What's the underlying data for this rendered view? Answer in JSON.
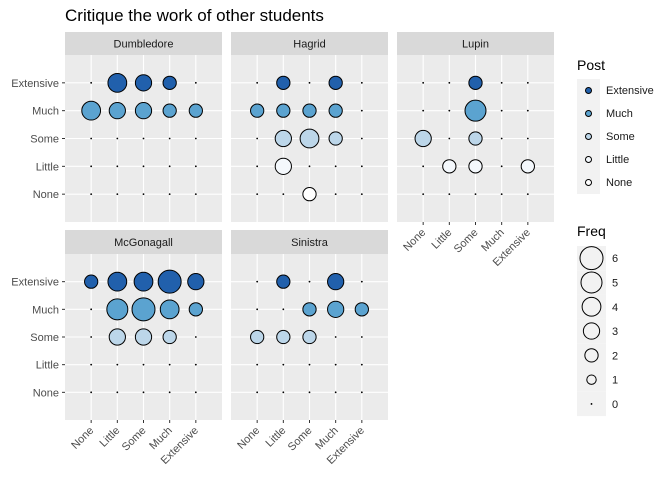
{
  "chart_data": {
    "type": "scatter",
    "title": "Critique the work of other students",
    "x_categories": [
      "None",
      "Little",
      "Some",
      "Much",
      "Extensive"
    ],
    "y_categories": [
      "None",
      "Little",
      "Some",
      "Much",
      "Extensive"
    ],
    "size_scale": {
      "legend_title": "Freq",
      "breaks": [
        6,
        5,
        4,
        3,
        2,
        1,
        0
      ],
      "max": 6
    },
    "fill_scale": {
      "legend_title": "Post",
      "levels": [
        "Extensive",
        "Much",
        "Some",
        "Little",
        "None"
      ],
      "colors": {
        "Extensive": "#2160ac",
        "Much": "#5ba3d0",
        "Some": "#bcd6e9",
        "Little": "#f4f8fc",
        "None": "#ffffff"
      }
    },
    "panels": [
      {
        "name": "Dumbledore",
        "points": [
          {
            "x": "Little",
            "y": "Extensive",
            "freq": 4
          },
          {
            "x": "Some",
            "y": "Extensive",
            "freq": 3
          },
          {
            "x": "Much",
            "y": "Extensive",
            "freq": 2
          },
          {
            "x": "None",
            "y": "Much",
            "freq": 4
          },
          {
            "x": "Little",
            "y": "Much",
            "freq": 3
          },
          {
            "x": "Some",
            "y": "Much",
            "freq": 3
          },
          {
            "x": "Much",
            "y": "Much",
            "freq": 2
          },
          {
            "x": "Extensive",
            "y": "Much",
            "freq": 2
          }
        ]
      },
      {
        "name": "Hagrid",
        "points": [
          {
            "x": "Little",
            "y": "Extensive",
            "freq": 2
          },
          {
            "x": "Much",
            "y": "Extensive",
            "freq": 2
          },
          {
            "x": "None",
            "y": "Much",
            "freq": 2
          },
          {
            "x": "Little",
            "y": "Much",
            "freq": 2
          },
          {
            "x": "Some",
            "y": "Much",
            "freq": 2
          },
          {
            "x": "Much",
            "y": "Much",
            "freq": 2
          },
          {
            "x": "Little",
            "y": "Some",
            "freq": 3
          },
          {
            "x": "Some",
            "y": "Some",
            "freq": 4
          },
          {
            "x": "Much",
            "y": "Some",
            "freq": 2
          },
          {
            "x": "Little",
            "y": "Little",
            "freq": 3
          },
          {
            "x": "Some",
            "y": "None",
            "freq": 2
          }
        ]
      },
      {
        "name": "Lupin",
        "points": [
          {
            "x": "Some",
            "y": "Extensive",
            "freq": 2
          },
          {
            "x": "Some",
            "y": "Much",
            "freq": 5
          },
          {
            "x": "None",
            "y": "Some",
            "freq": 3
          },
          {
            "x": "Some",
            "y": "Some",
            "freq": 2
          },
          {
            "x": "Little",
            "y": "Little",
            "freq": 2
          },
          {
            "x": "Some",
            "y": "Little",
            "freq": 2
          },
          {
            "x": "Extensive",
            "y": "Little",
            "freq": 2
          }
        ]
      },
      {
        "name": "McGonagall",
        "points": [
          {
            "x": "None",
            "y": "Extensive",
            "freq": 2
          },
          {
            "x": "Little",
            "y": "Extensive",
            "freq": 4
          },
          {
            "x": "Some",
            "y": "Extensive",
            "freq": 4
          },
          {
            "x": "Much",
            "y": "Extensive",
            "freq": 6
          },
          {
            "x": "Extensive",
            "y": "Extensive",
            "freq": 3
          },
          {
            "x": "Little",
            "y": "Much",
            "freq": 5
          },
          {
            "x": "Some",
            "y": "Much",
            "freq": 6
          },
          {
            "x": "Much",
            "y": "Much",
            "freq": 4
          },
          {
            "x": "Extensive",
            "y": "Much",
            "freq": 2
          },
          {
            "x": "Little",
            "y": "Some",
            "freq": 3
          },
          {
            "x": "Some",
            "y": "Some",
            "freq": 3
          },
          {
            "x": "Much",
            "y": "Some",
            "freq": 2
          }
        ]
      },
      {
        "name": "Sinistra",
        "points": [
          {
            "x": "Little",
            "y": "Extensive",
            "freq": 2
          },
          {
            "x": "Much",
            "y": "Extensive",
            "freq": 3
          },
          {
            "x": "Some",
            "y": "Much",
            "freq": 2
          },
          {
            "x": "Much",
            "y": "Much",
            "freq": 3
          },
          {
            "x": "Extensive",
            "y": "Much",
            "freq": 2
          },
          {
            "x": "None",
            "y": "Some",
            "freq": 2
          },
          {
            "x": "Little",
            "y": "Some",
            "freq": 2
          },
          {
            "x": "Some",
            "y": "Some",
            "freq": 2
          }
        ]
      }
    ]
  }
}
